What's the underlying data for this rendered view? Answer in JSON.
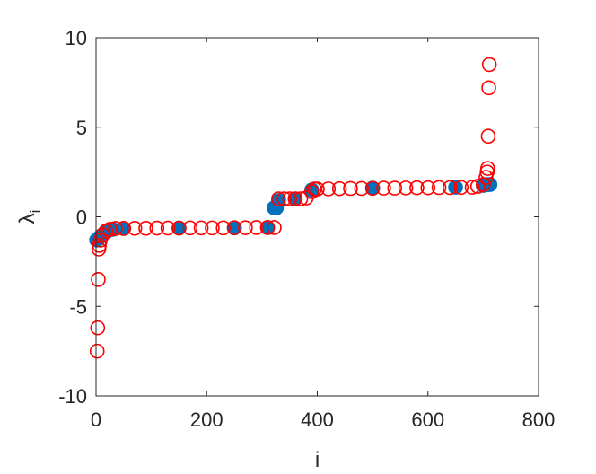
{
  "chart_data": {
    "type": "scatter",
    "xlabel": "i",
    "ylabel": "λ",
    "ylabel_subscript": "i",
    "xlim": [
      0,
      800
    ],
    "ylim": [
      -10,
      10
    ],
    "xticks": [
      0,
      200,
      400,
      600,
      800
    ],
    "yticks": [
      -10,
      -5,
      0,
      5,
      10
    ],
    "series": [
      {
        "color": "#0072bd",
        "filled": true,
        "x": [
          1,
          3,
          5,
          8,
          12,
          20,
          30,
          50,
          150,
          250,
          310,
          322,
          326,
          330,
          360,
          390,
          500,
          650,
          700,
          708,
          712
        ],
        "values": [
          -1.3,
          -1.25,
          -1.2,
          -1.1,
          -1.0,
          -0.8,
          -0.7,
          -0.65,
          -0.63,
          -0.62,
          -0.6,
          0.5,
          0.5,
          0.9,
          1.0,
          1.5,
          1.6,
          1.65,
          1.75,
          1.8,
          1.8
        ]
      },
      {
        "color": "#ff0000",
        "filled": false,
        "x": [
          2,
          3,
          4,
          5,
          6,
          8,
          12,
          18,
          25,
          35,
          50,
          70,
          90,
          110,
          130,
          150,
          170,
          190,
          210,
          230,
          250,
          270,
          290,
          310,
          322,
          330,
          340,
          350,
          360,
          370,
          380,
          390,
          395,
          400,
          420,
          440,
          460,
          480,
          500,
          520,
          540,
          560,
          580,
          600,
          620,
          640,
          660,
          680,
          690,
          700,
          705,
          707,
          708,
          709,
          710,
          711
        ],
        "values": [
          -7.5,
          -6.2,
          -3.5,
          -1.8,
          -1.6,
          -1.3,
          -1.0,
          -0.8,
          -0.7,
          -0.65,
          -0.65,
          -0.64,
          -0.64,
          -0.63,
          -0.63,
          -0.63,
          -0.62,
          -0.62,
          -0.62,
          -0.62,
          -0.61,
          -0.61,
          -0.6,
          -0.6,
          -0.6,
          1.0,
          1.0,
          1.0,
          1.0,
          1.0,
          1.05,
          1.4,
          1.55,
          1.55,
          1.56,
          1.57,
          1.58,
          1.58,
          1.59,
          1.6,
          1.6,
          1.61,
          1.62,
          1.62,
          1.63,
          1.63,
          1.64,
          1.65,
          1.7,
          1.8,
          2.2,
          2.5,
          2.7,
          4.5,
          7.2,
          8.5
        ]
      }
    ]
  }
}
